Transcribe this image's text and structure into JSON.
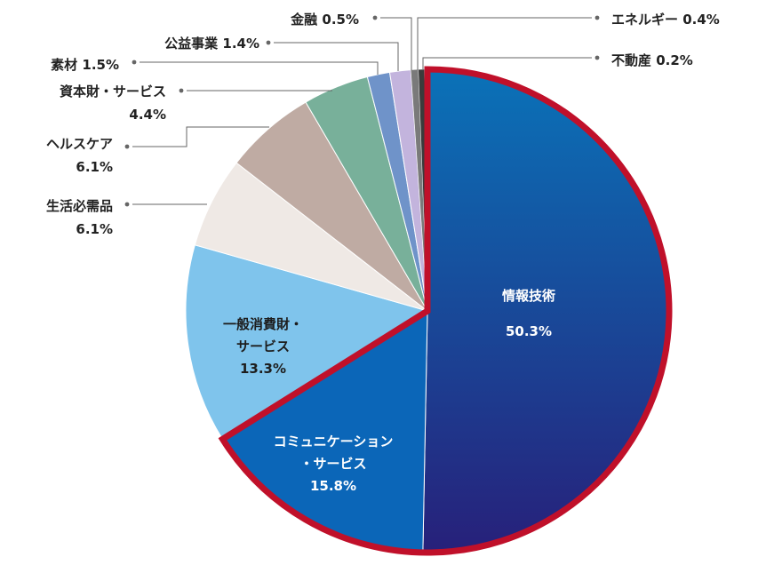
{
  "chart_data": {
    "type": "pie",
    "title": "",
    "slices": [
      {
        "label": "情報技術",
        "value": 50.3,
        "text": "50.3%",
        "color": "#1c5aa6",
        "highlight": true
      },
      {
        "label": "コミュニケーション・サービス",
        "value": 15.8,
        "text": "15.8%",
        "color": "#0b66b8",
        "highlight": true
      },
      {
        "label": "一般消費財・サービス",
        "value": 13.3,
        "text": "13.3%",
        "color": "#7fc4ec"
      },
      {
        "label": "生活必需品",
        "value": 6.1,
        "text": "6.1%",
        "color": "#efe9e5"
      },
      {
        "label": "ヘルスケア",
        "value": 6.1,
        "text": "6.1%",
        "color": "#bfaba3"
      },
      {
        "label": "資本財・サービス",
        "value": 4.4,
        "text": "4.4%",
        "color": "#78b09a"
      },
      {
        "label": "素材",
        "value": 1.5,
        "text": "1.5%",
        "color": "#6f93c9"
      },
      {
        "label": "公益事業",
        "value": 1.4,
        "text": "1.4%",
        "color": "#c3b4dd"
      },
      {
        "label": "金融",
        "value": 0.5,
        "text": "0.5%",
        "color": "#7a7a7a"
      },
      {
        "label": "エネルギー",
        "value": 0.4,
        "text": "0.4%",
        "color": "#3b3b3b"
      },
      {
        "label": "不動産",
        "value": 0.2,
        "text": "0.2%",
        "color": "#c7c7c7"
      }
    ],
    "highlight_color": "#c0102a",
    "leader_color": "#666666"
  }
}
